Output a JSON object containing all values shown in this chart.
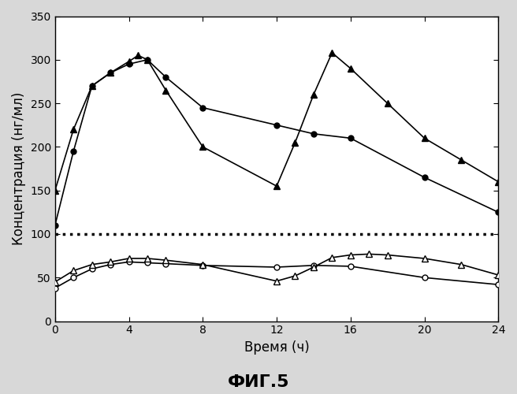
{
  "filled_circles_x": [
    0,
    1,
    2,
    3,
    4,
    5,
    6,
    8,
    12,
    14,
    16,
    20,
    24
  ],
  "filled_circles_y": [
    110,
    195,
    270,
    285,
    295,
    300,
    280,
    245,
    225,
    215,
    210,
    165,
    125
  ],
  "filled_triangles_x": [
    0,
    1,
    2,
    3,
    4,
    4.5,
    5,
    6,
    8,
    12,
    13,
    14,
    15,
    16,
    18,
    20,
    22,
    24
  ],
  "filled_triangles_y": [
    150,
    220,
    270,
    285,
    298,
    305,
    300,
    265,
    200,
    155,
    205,
    260,
    308,
    290,
    250,
    210,
    185,
    160
  ],
  "open_circles_x": [
    0,
    1,
    2,
    3,
    4,
    5,
    6,
    8,
    12,
    14,
    16,
    20,
    24
  ],
  "open_circles_y": [
    38,
    50,
    60,
    65,
    68,
    67,
    66,
    64,
    62,
    64,
    63,
    50,
    42
  ],
  "open_triangles_x": [
    0,
    1,
    2,
    3,
    4,
    5,
    6,
    8,
    12,
    13,
    14,
    15,
    16,
    17,
    18,
    20,
    22,
    24
  ],
  "open_triangles_y": [
    45,
    58,
    65,
    68,
    72,
    72,
    70,
    65,
    46,
    52,
    62,
    73,
    76,
    77,
    76,
    72,
    65,
    53
  ],
  "dotted_line_y": 100,
  "xlim": [
    0,
    24
  ],
  "ylim": [
    0,
    350
  ],
  "xticks": [
    0,
    4,
    8,
    12,
    16,
    20,
    24
  ],
  "yticks": [
    0,
    50,
    100,
    150,
    200,
    250,
    300,
    350
  ],
  "xlabel": "Время (ч)",
  "ylabel": "Концентрация (нг/мл)",
  "title": "ФИГ.5",
  "line_color": "black",
  "background_color": "#d8d8d8"
}
